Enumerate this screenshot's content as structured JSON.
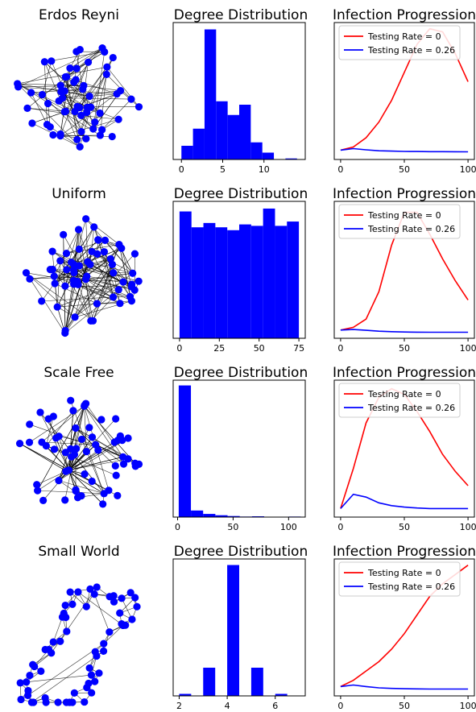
{
  "colors": {
    "node": "#0000ff",
    "edge": "#000000",
    "bar": "#0000ff",
    "series_red": "#ff0000",
    "series_blue": "#0000ff"
  },
  "chart_data": [
    {
      "type": "network",
      "title": "Erdos Reyni",
      "nodes": 60
    },
    {
      "type": "bar",
      "title": "Degree Distribution",
      "bin_edges": [
        0,
        1.4,
        2.8,
        4.2,
        5.6,
        7.0,
        8.4,
        9.8,
        11.2,
        12.6,
        14.0
      ],
      "values": [
        4,
        9,
        38,
        17,
        13,
        16,
        5,
        2,
        0,
        0.3
      ],
      "xticks": [
        0,
        5,
        10
      ],
      "xlim": [
        -1,
        15
      ],
      "ylim": [
        0,
        40
      ]
    },
    {
      "type": "line",
      "title": "Infection Progression",
      "x": [
        0,
        10,
        20,
        30,
        40,
        50,
        60,
        70,
        80,
        90,
        100
      ],
      "series": [
        {
          "name": "Testing Rate = 0",
          "color": "#ff0000",
          "values": [
            1,
            2,
            5,
            10,
            17,
            26,
            35,
            40,
            39,
            32,
            23
          ]
        },
        {
          "name": "Testing Rate = 0.26",
          "color": "#0000ff",
          "values": [
            1,
            1.5,
            1.1,
            0.8,
            0.7,
            0.6,
            0.55,
            0.5,
            0.5,
            0.48,
            0.45
          ]
        }
      ],
      "xticks": [
        0,
        50,
        100
      ],
      "xlim": [
        -5,
        105
      ],
      "ylim": [
        -2,
        42
      ]
    },
    {
      "type": "network",
      "title": "Uniform",
      "nodes": 60
    },
    {
      "type": "bar",
      "title": "Degree Distribution",
      "bin_edges": [
        0,
        7.5,
        15,
        22.5,
        30,
        37.5,
        45,
        52.5,
        60,
        67.5,
        75
      ],
      "values": [
        88,
        77,
        80,
        77,
        75,
        79,
        78,
        90,
        78,
        81
      ],
      "xticks": [
        0,
        25,
        50,
        75
      ],
      "xlim": [
        -4,
        79
      ],
      "ylim": [
        0,
        95
      ]
    },
    {
      "type": "line",
      "title": "Infection Progression",
      "x": [
        0,
        10,
        20,
        30,
        40,
        50,
        60,
        70,
        80,
        90,
        100
      ],
      "series": [
        {
          "name": "Testing Rate = 0",
          "color": "#ff0000",
          "values": [
            1,
            2,
            5,
            15,
            32,
            44,
            44,
            36,
            27,
            19,
            12
          ]
        },
        {
          "name": "Testing Rate = 0.26",
          "color": "#0000ff",
          "values": [
            1,
            1.2,
            0.9,
            0.6,
            0.4,
            0.3,
            0.25,
            0.2,
            0.2,
            0.2,
            0.2
          ]
        }
      ],
      "xticks": [
        0,
        50,
        100
      ],
      "xlim": [
        -5,
        105
      ],
      "ylim": [
        -2,
        48
      ]
    },
    {
      "type": "network",
      "title": "Scale Free",
      "nodes": 60
    },
    {
      "type": "bar",
      "title": "Degree Distribution",
      "bin_edges": [
        1,
        12,
        23,
        34,
        45,
        56,
        67,
        78,
        89,
        100,
        111
      ],
      "values": [
        50,
        2.5,
        1.2,
        0.7,
        0.4,
        0.2,
        0.3,
        0,
        0,
        0.2
      ],
      "xticks": [
        0,
        50,
        100
      ],
      "xlim": [
        -4,
        115
      ],
      "ylim": [
        0,
        52
      ]
    },
    {
      "type": "line",
      "title": "Infection Progression",
      "x": [
        0,
        10,
        20,
        30,
        40,
        50,
        60,
        70,
        80,
        90,
        100
      ],
      "series": [
        {
          "name": "Testing Rate = 0",
          "color": "#ff0000",
          "values": [
            1,
            15,
            31,
            40,
            43,
            41,
            35,
            28,
            20,
            14,
            9
          ]
        },
        {
          "name": "Testing Rate = 0.26",
          "color": "#0000ff",
          "values": [
            1,
            6,
            5,
            3,
            2,
            1.5,
            1.2,
            1,
            1,
            1,
            1
          ]
        }
      ],
      "xticks": [
        0,
        50,
        100
      ],
      "xlim": [
        -5,
        105
      ],
      "ylim": [
        -2,
        46
      ]
    },
    {
      "type": "network",
      "title": "Small World",
      "nodes": 60
    },
    {
      "type": "bar",
      "title": "Degree Distribution",
      "bin_edges": [
        2,
        2.5,
        3,
        3.5,
        4,
        4.5,
        5,
        5.5,
        6,
        6.5,
        7
      ],
      "values": [
        1,
        0,
        14,
        0,
        65,
        0,
        14,
        0,
        1,
        0
      ],
      "xticks": [
        2,
        4,
        6
      ],
      "xlim": [
        1.75,
        7.25
      ],
      "ylim": [
        0,
        68
      ]
    },
    {
      "type": "line",
      "title": "Infection Progression",
      "x": [
        0,
        10,
        20,
        30,
        40,
        50,
        60,
        70,
        80,
        90,
        100
      ],
      "series": [
        {
          "name": "Testing Rate = 0",
          "color": "#ff0000",
          "values": [
            1,
            3,
            6,
            9,
            13,
            18,
            24,
            30,
            34,
            37,
            40
          ]
        },
        {
          "name": "Testing Rate = 0.26",
          "color": "#0000ff",
          "values": [
            1,
            1.5,
            1,
            0.6,
            0.4,
            0.3,
            0.25,
            0.2,
            0.2,
            0.2,
            0.2
          ]
        }
      ],
      "xticks": [
        0,
        50,
        100
      ],
      "xlim": [
        -5,
        105
      ],
      "ylim": [
        -2,
        42
      ]
    }
  ]
}
